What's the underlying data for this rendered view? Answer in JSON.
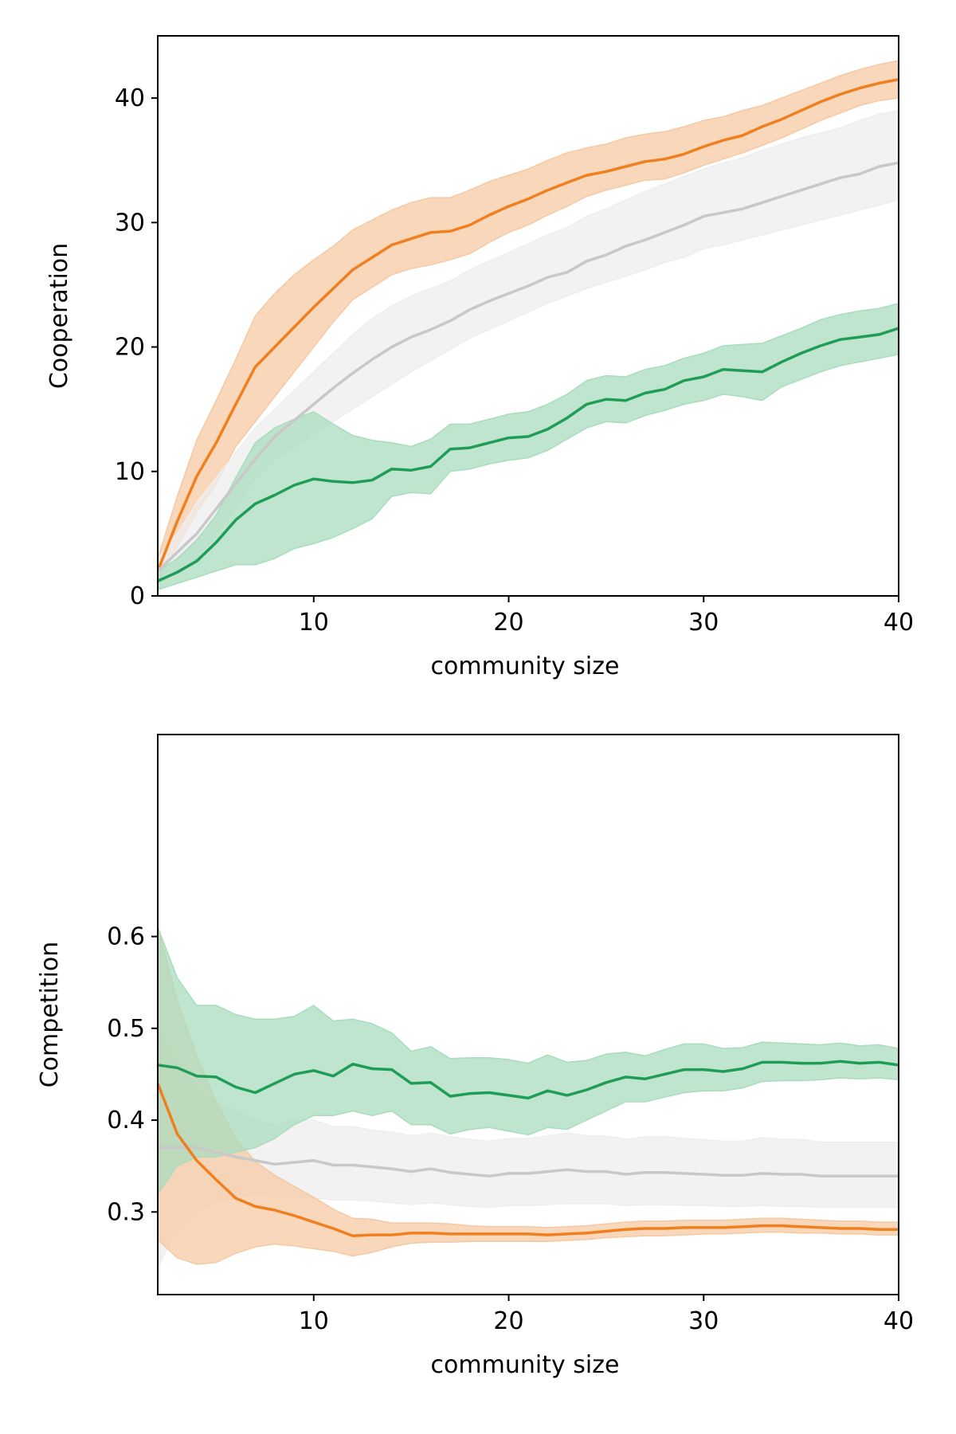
{
  "colors": {
    "orange": "#f07f1f",
    "green": "#1f9c55",
    "gray": "#c8c8c8",
    "orange_band": "#f5c9a3",
    "green_band": "#a9dcbf",
    "gray_band": "#eeeeee"
  },
  "chart_data": [
    {
      "type": "line",
      "xlabel": "community size",
      "ylabel": "Cooperation",
      "xlim": [
        2,
        40
      ],
      "ylim": [
        0,
        45
      ],
      "xticks": [
        "10",
        "20",
        "30",
        "40"
      ],
      "yticks": [
        "0",
        "10",
        "20",
        "30",
        "40"
      ],
      "grid": false,
      "legend": "none",
      "x": [
        2,
        3,
        4,
        5,
        6,
        7,
        8,
        9,
        10,
        11,
        12,
        13,
        14,
        15,
        16,
        17,
        18,
        19,
        20,
        21,
        22,
        23,
        24,
        25,
        26,
        27,
        28,
        29,
        30,
        31,
        32,
        33,
        34,
        35,
        36,
        37,
        38,
        39,
        40
      ],
      "series": [
        {
          "color": "orange",
          "values": [
            2.0,
            6.0,
            9.6,
            12.3,
            15.4,
            18.4,
            20.0,
            21.6,
            23.2,
            24.7,
            26.2,
            27.2,
            28.2,
            28.7,
            29.2,
            29.3,
            29.8,
            30.6,
            31.3,
            31.9,
            32.6,
            33.2,
            33.8,
            34.1,
            34.5,
            34.9,
            35.1,
            35.5,
            36.1,
            36.6,
            37.0,
            37.7,
            38.3,
            39.0,
            39.7,
            40.3,
            40.8,
            41.2,
            41.5
          ],
          "lower": [
            1.0,
            4.0,
            6.7,
            9.0,
            12.0,
            14.0,
            16.0,
            18.0,
            20.0,
            22.0,
            23.8,
            24.8,
            25.8,
            26.3,
            26.6,
            27.0,
            27.5,
            28.4,
            29.2,
            29.8,
            30.6,
            31.3,
            32.1,
            32.6,
            33.0,
            33.4,
            33.5,
            34.0,
            34.6,
            35.1,
            35.6,
            36.2,
            36.8,
            37.5,
            38.2,
            38.8,
            39.4,
            39.8,
            40.0
          ],
          "upper": [
            3.0,
            8.0,
            12.5,
            15.7,
            19.0,
            22.5,
            24.3,
            25.8,
            27.0,
            28.1,
            29.4,
            30.2,
            31.0,
            31.6,
            32.0,
            32.0,
            32.6,
            33.3,
            33.8,
            34.3,
            35.0,
            35.6,
            36.0,
            36.3,
            36.8,
            37.1,
            37.3,
            37.7,
            38.2,
            38.5,
            39.0,
            39.4,
            40.0,
            40.6,
            41.2,
            41.8,
            42.3,
            42.7,
            43.0
          ]
        },
        {
          "color": "gray",
          "values": [
            2.0,
            3.5,
            5.0,
            7.0,
            9.0,
            11.0,
            12.8,
            14.1,
            15.4,
            16.7,
            17.9,
            19.0,
            20.0,
            20.8,
            21.4,
            22.1,
            23.0,
            23.7,
            24.3,
            24.9,
            25.6,
            26.0,
            26.9,
            27.4,
            28.1,
            28.6,
            29.2,
            29.8,
            30.5,
            30.8,
            31.1,
            31.6,
            32.1,
            32.6,
            33.1,
            33.6,
            33.9,
            34.5,
            34.8
          ],
          "lower": [
            1.0,
            2.0,
            3.0,
            5.0,
            7.0,
            9.5,
            11.0,
            12.0,
            13.0,
            14.0,
            15.0,
            16.0,
            17.0,
            18.0,
            18.9,
            19.8,
            20.7,
            21.4,
            22.1,
            22.8,
            23.5,
            24.1,
            24.7,
            25.2,
            25.7,
            26.2,
            26.8,
            27.2,
            27.9,
            28.2,
            28.6,
            29.0,
            29.4,
            29.8,
            30.2,
            30.6,
            31.0,
            31.4,
            31.8
          ],
          "upper": [
            3.0,
            5.0,
            7.5,
            9.5,
            11.5,
            13.5,
            15.0,
            16.5,
            18.0,
            19.5,
            21.0,
            22.3,
            23.3,
            24.1,
            24.7,
            25.3,
            26.2,
            26.9,
            27.6,
            28.3,
            29.0,
            29.6,
            30.5,
            31.1,
            31.8,
            32.5,
            33.1,
            33.7,
            34.3,
            34.8,
            35.2,
            35.8,
            36.3,
            36.8,
            37.2,
            37.6,
            38.2,
            38.7,
            39.0
          ]
        },
        {
          "color": "green",
          "values": [
            1.2,
            1.9,
            2.8,
            4.3,
            6.1,
            7.4,
            8.1,
            8.9,
            9.4,
            9.2,
            9.1,
            9.3,
            10.2,
            10.1,
            10.4,
            11.8,
            11.9,
            12.3,
            12.7,
            12.8,
            13.4,
            14.3,
            15.4,
            15.8,
            15.7,
            16.3,
            16.6,
            17.3,
            17.6,
            18.2,
            18.1,
            18.0,
            18.8,
            19.5,
            20.1,
            20.6,
            20.8,
            21.0,
            21.5
          ],
          "lower": [
            0.5,
            1.0,
            1.5,
            2.0,
            2.5,
            2.5,
            3.0,
            3.8,
            4.2,
            4.7,
            5.4,
            6.2,
            8.0,
            8.3,
            8.2,
            10.0,
            10.2,
            10.6,
            10.9,
            11.1,
            11.7,
            12.6,
            13.5,
            14.0,
            13.9,
            14.5,
            14.9,
            15.4,
            15.7,
            16.2,
            16.0,
            15.7,
            16.8,
            17.4,
            18.0,
            18.5,
            18.8,
            19.1,
            19.4
          ],
          "upper": [
            2.0,
            3.0,
            4.5,
            6.5,
            9.5,
            12.3,
            13.5,
            14.2,
            14.8,
            13.8,
            12.9,
            12.5,
            12.3,
            12.0,
            12.6,
            13.8,
            13.8,
            14.2,
            14.6,
            14.8,
            15.4,
            16.2,
            17.3,
            17.7,
            17.6,
            18.2,
            18.5,
            19.1,
            19.5,
            20.1,
            20.2,
            20.3,
            20.9,
            21.5,
            22.2,
            22.6,
            22.9,
            23.1,
            23.5
          ]
        }
      ]
    },
    {
      "type": "line",
      "xlabel": "community size",
      "ylabel": "Competition",
      "xlim": [
        2,
        40
      ],
      "ylim": [
        0.21,
        0.82
      ],
      "xticks": [
        "10",
        "20",
        "30",
        "40"
      ],
      "yticks": [
        "0.3",
        "0.4",
        "0.5",
        "0.6"
      ],
      "grid": false,
      "legend": "none",
      "x": [
        2,
        3,
        4,
        5,
        6,
        7,
        8,
        9,
        10,
        11,
        12,
        13,
        14,
        15,
        16,
        17,
        18,
        19,
        20,
        21,
        22,
        23,
        24,
        25,
        26,
        27,
        28,
        29,
        30,
        31,
        32,
        33,
        34,
        35,
        36,
        37,
        38,
        39,
        40
      ],
      "series": [
        {
          "color": "gray",
          "values": [
            0.37,
            0.37,
            0.37,
            0.365,
            0.36,
            0.356,
            0.352,
            0.354,
            0.356,
            0.351,
            0.351,
            0.349,
            0.347,
            0.344,
            0.347,
            0.343,
            0.341,
            0.339,
            0.342,
            0.342,
            0.344,
            0.346,
            0.344,
            0.344,
            0.341,
            0.343,
            0.343,
            0.342,
            0.341,
            0.34,
            0.34,
            0.342,
            0.341,
            0.341,
            0.339,
            0.339,
            0.339,
            0.339,
            0.339
          ],
          "lower": [
            0.24,
            0.28,
            0.3,
            0.31,
            0.315,
            0.32,
            0.315,
            0.315,
            0.315,
            0.313,
            0.313,
            0.312,
            0.31,
            0.308,
            0.31,
            0.308,
            0.306,
            0.305,
            0.307,
            0.307,
            0.308,
            0.309,
            0.309,
            0.309,
            0.307,
            0.308,
            0.308,
            0.307,
            0.307,
            0.306,
            0.306,
            0.307,
            0.306,
            0.306,
            0.305,
            0.305,
            0.305,
            0.305,
            0.305
          ],
          "upper": [
            0.5,
            0.46,
            0.44,
            0.42,
            0.41,
            0.4,
            0.395,
            0.4,
            0.4,
            0.393,
            0.393,
            0.389,
            0.387,
            0.383,
            0.386,
            0.382,
            0.379,
            0.377,
            0.38,
            0.38,
            0.383,
            0.386,
            0.383,
            0.383,
            0.379,
            0.382,
            0.382,
            0.38,
            0.379,
            0.377,
            0.377,
            0.381,
            0.379,
            0.379,
            0.376,
            0.376,
            0.376,
            0.376,
            0.376
          ]
        },
        {
          "color": "orange",
          "values": [
            0.44,
            0.385,
            0.356,
            0.335,
            0.315,
            0.306,
            0.302,
            0.296,
            0.289,
            0.282,
            0.274,
            0.275,
            0.275,
            0.277,
            0.277,
            0.276,
            0.276,
            0.276,
            0.276,
            0.276,
            0.275,
            0.276,
            0.277,
            0.279,
            0.281,
            0.282,
            0.282,
            0.283,
            0.283,
            0.283,
            0.284,
            0.285,
            0.285,
            0.284,
            0.283,
            0.282,
            0.282,
            0.281,
            0.281
          ],
          "lower": [
            0.27,
            0.25,
            0.243,
            0.245,
            0.255,
            0.262,
            0.265,
            0.263,
            0.26,
            0.257,
            0.252,
            0.256,
            0.262,
            0.266,
            0.267,
            0.267,
            0.268,
            0.268,
            0.268,
            0.268,
            0.268,
            0.269,
            0.27,
            0.272,
            0.273,
            0.274,
            0.274,
            0.275,
            0.276,
            0.276,
            0.277,
            0.278,
            0.278,
            0.277,
            0.277,
            0.276,
            0.276,
            0.275,
            0.275
          ],
          "upper": [
            0.61,
            0.53,
            0.47,
            0.42,
            0.38,
            0.355,
            0.34,
            0.328,
            0.316,
            0.303,
            0.293,
            0.292,
            0.288,
            0.288,
            0.288,
            0.287,
            0.285,
            0.284,
            0.284,
            0.284,
            0.283,
            0.284,
            0.285,
            0.287,
            0.289,
            0.29,
            0.29,
            0.291,
            0.291,
            0.291,
            0.292,
            0.293,
            0.293,
            0.292,
            0.291,
            0.29,
            0.29,
            0.289,
            0.289
          ]
        },
        {
          "color": "green",
          "values": [
            0.46,
            0.457,
            0.448,
            0.447,
            0.436,
            0.43,
            0.44,
            0.45,
            0.454,
            0.448,
            0.461,
            0.456,
            0.455,
            0.44,
            0.441,
            0.426,
            0.429,
            0.43,
            0.427,
            0.424,
            0.432,
            0.427,
            0.433,
            0.441,
            0.447,
            0.445,
            0.45,
            0.455,
            0.455,
            0.453,
            0.456,
            0.463,
            0.463,
            0.462,
            0.462,
            0.464,
            0.462,
            0.463,
            0.46
          ],
          "lower": [
            0.32,
            0.35,
            0.36,
            0.36,
            0.365,
            0.37,
            0.38,
            0.395,
            0.405,
            0.405,
            0.41,
            0.405,
            0.41,
            0.395,
            0.395,
            0.385,
            0.39,
            0.392,
            0.388,
            0.384,
            0.392,
            0.39,
            0.4,
            0.41,
            0.42,
            0.42,
            0.425,
            0.43,
            0.432,
            0.432,
            0.435,
            0.442,
            0.443,
            0.443,
            0.444,
            0.446,
            0.445,
            0.446,
            0.444
          ],
          "upper": [
            0.61,
            0.555,
            0.525,
            0.525,
            0.515,
            0.51,
            0.51,
            0.513,
            0.525,
            0.508,
            0.51,
            0.505,
            0.495,
            0.475,
            0.48,
            0.467,
            0.468,
            0.468,
            0.466,
            0.462,
            0.471,
            0.463,
            0.465,
            0.472,
            0.474,
            0.47,
            0.477,
            0.483,
            0.483,
            0.478,
            0.479,
            0.485,
            0.484,
            0.483,
            0.482,
            0.484,
            0.481,
            0.482,
            0.478
          ]
        }
      ]
    }
  ]
}
